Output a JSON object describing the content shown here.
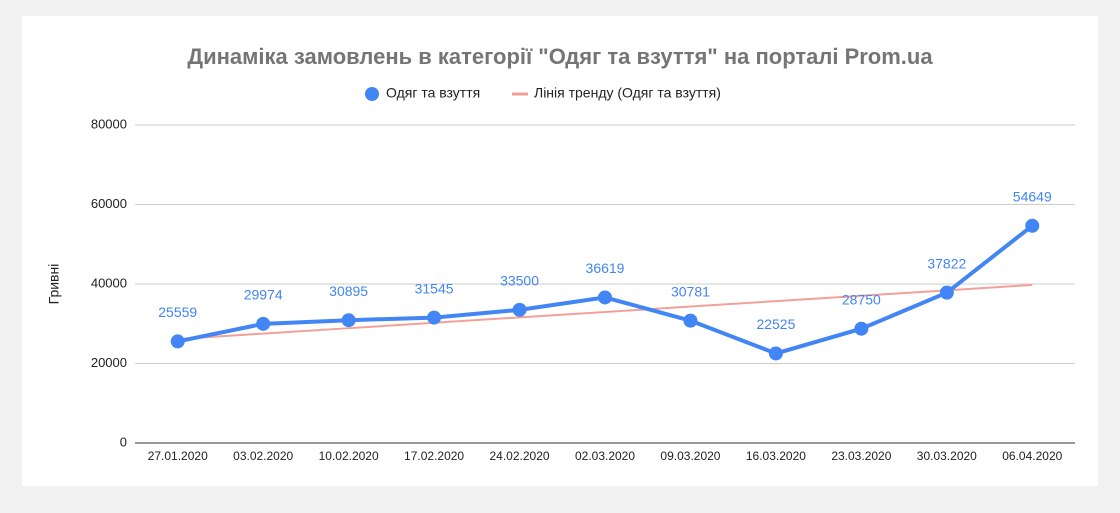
{
  "chart_data": {
    "type": "line",
    "title": "Динаміка замовлень в категорії \"Одяг та взуття\" на порталі Prom.ua",
    "y_label": "Гривні",
    "categories": [
      "27.01.2020",
      "03.02.2020",
      "10.02.2020",
      "17.02.2020",
      "24.02.2020",
      "02.03.2020",
      "09.03.2020",
      "16.03.2020",
      "23.03.2020",
      "30.03.2020",
      "06.04.2020"
    ],
    "series": [
      {
        "name": "Одяг та взуття",
        "color": "#4285f4",
        "values": [
          25559,
          29974,
          30895,
          31545,
          33500,
          36619,
          30781,
          22525,
          28750,
          37822,
          54649
        ]
      },
      {
        "name": "Лінія тренду (Одяг та взуття)",
        "color": "#f4a09a",
        "values": [
          26163,
          27524,
          28884,
          30245,
          31605,
          32965,
          34326,
          35686,
          37047,
          38407,
          39767
        ]
      }
    ],
    "ylim": [
      0,
      80000
    ],
    "yticks": [
      0,
      20000,
      40000,
      60000,
      80000
    ],
    "grid": true,
    "legend": "top"
  }
}
